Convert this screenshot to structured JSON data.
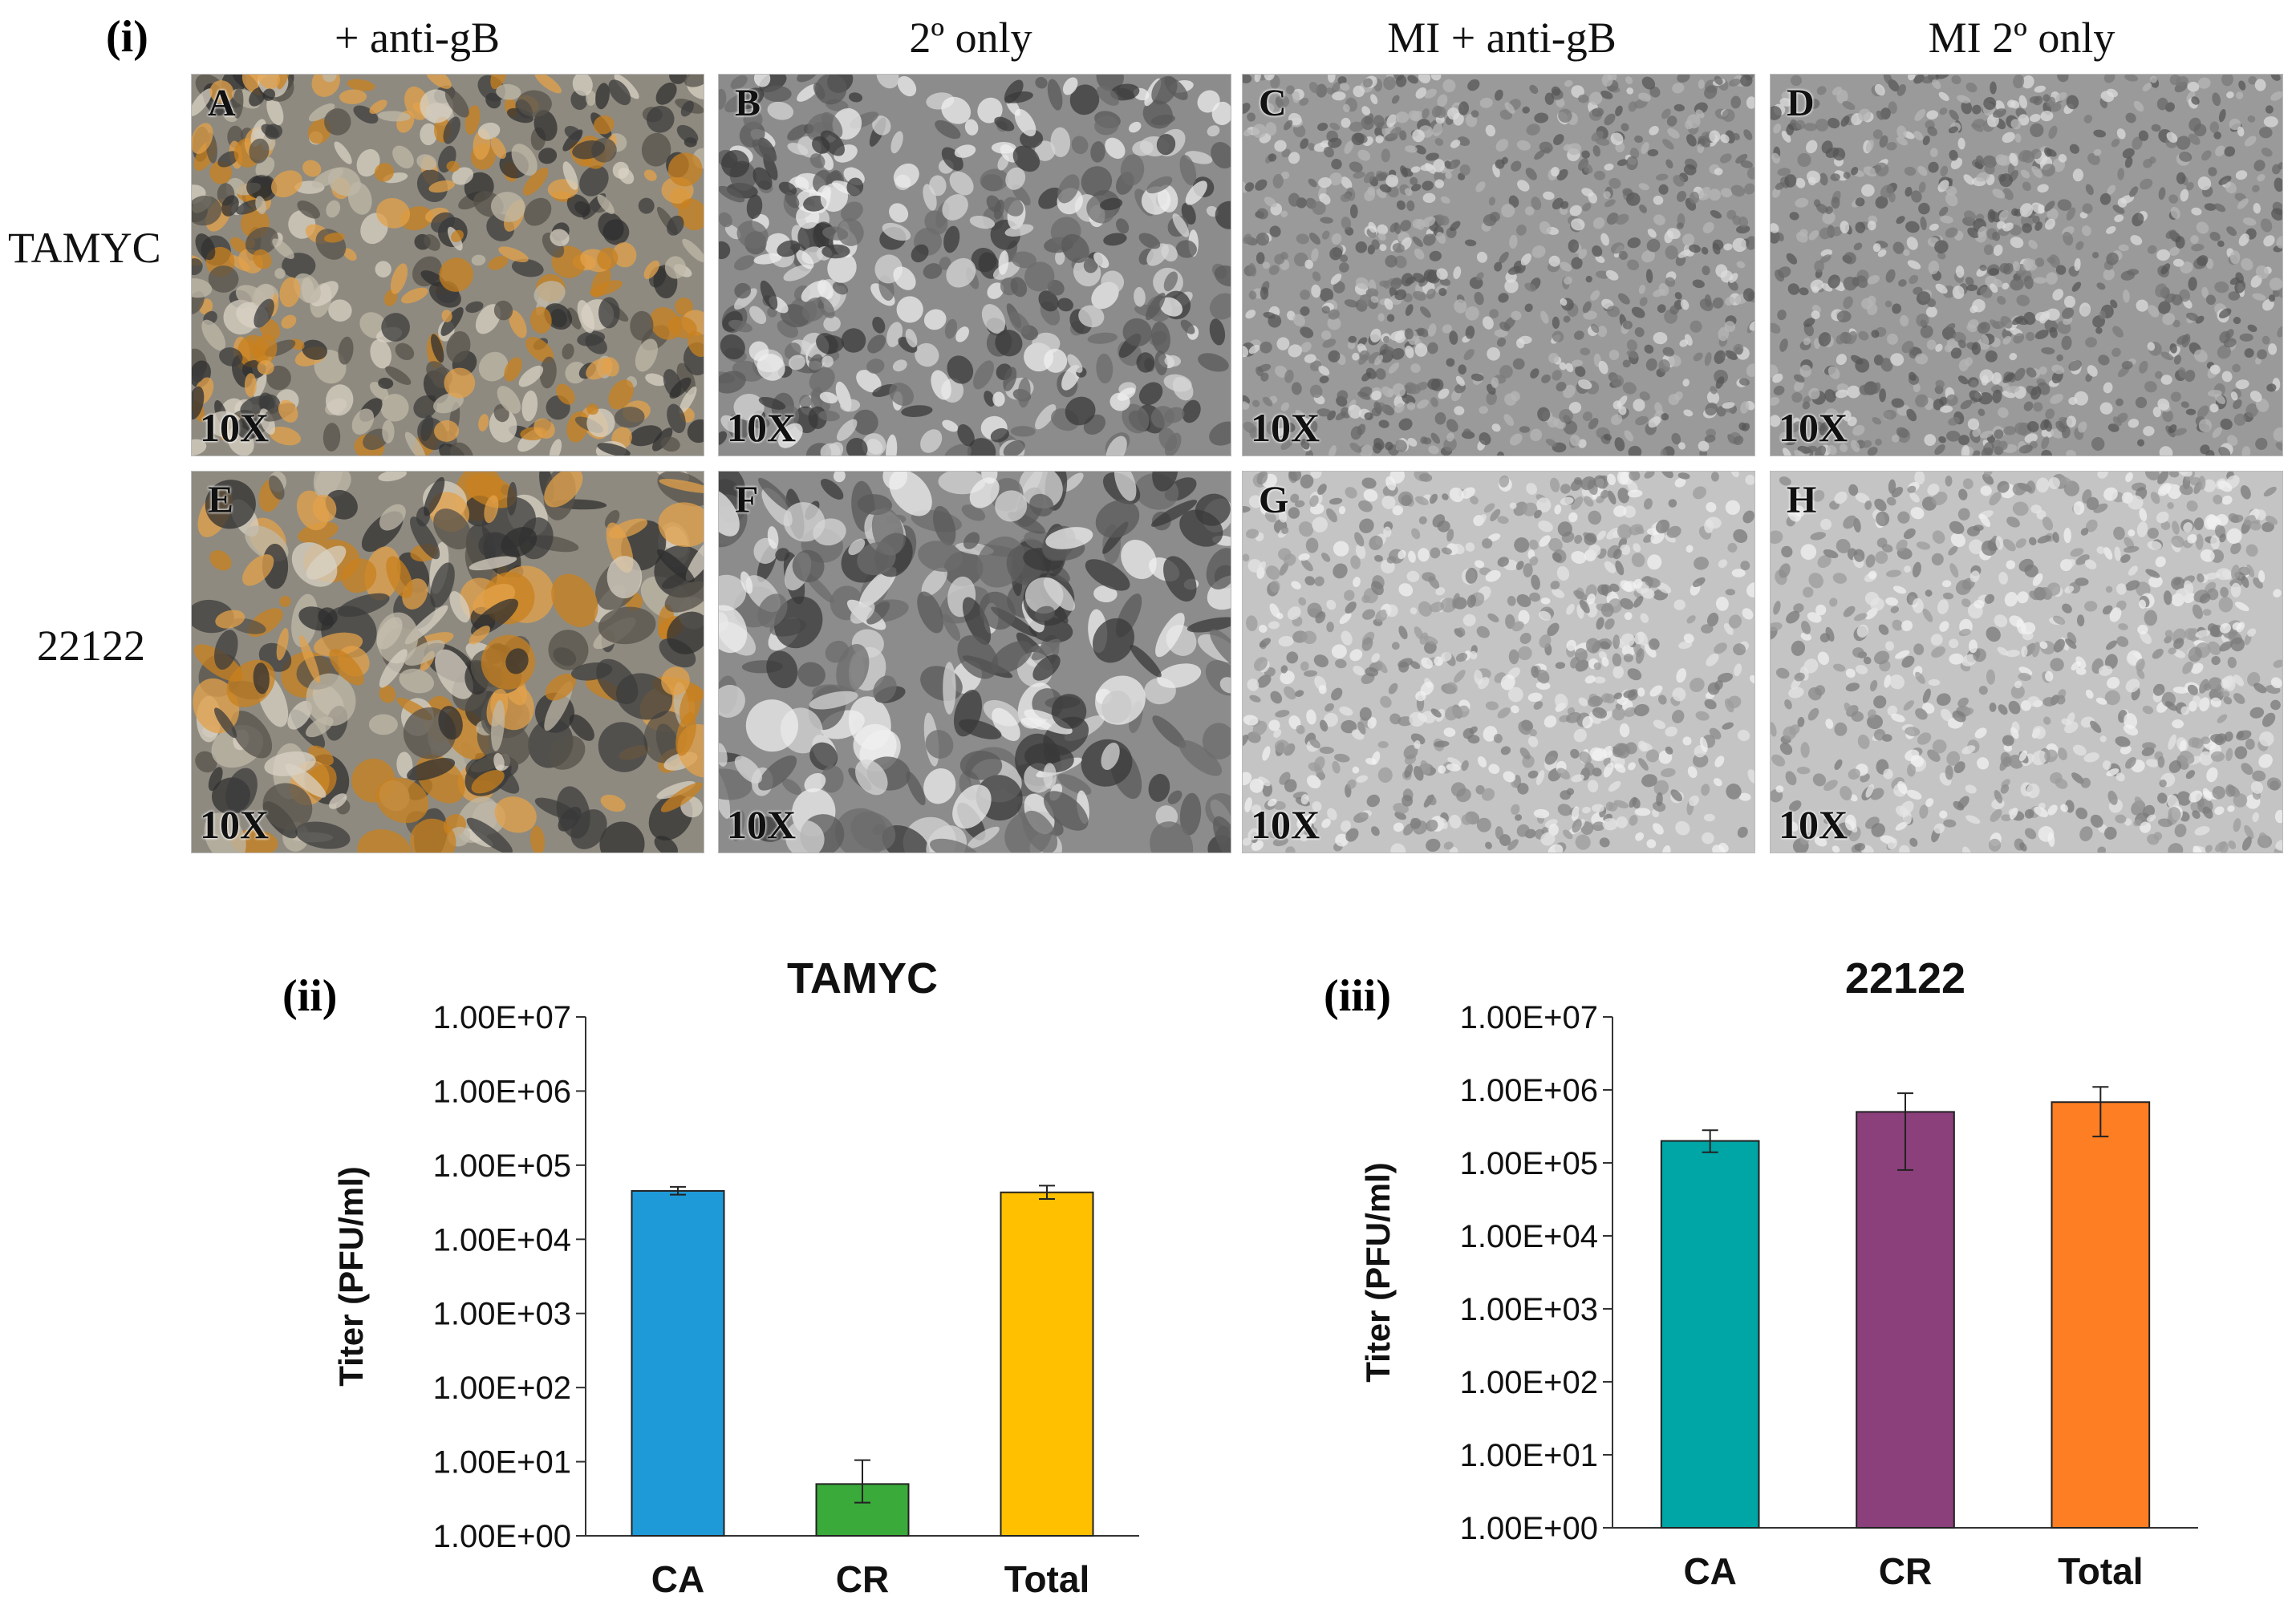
{
  "figure": {
    "panel_i_label": "(i)",
    "column_headers": [
      "+ anti-gB",
      "2º only",
      "MI + anti-gB",
      "MI 2º only"
    ],
    "row_labels": [
      "TAMYC",
      "22122"
    ],
    "micrographs": [
      {
        "letter": "A",
        "magnification": "10X",
        "texture": "stained-dense"
      },
      {
        "letter": "B",
        "magnification": "10X",
        "texture": "phase-dense"
      },
      {
        "letter": "C",
        "magnification": "10X",
        "texture": "gray-confluent"
      },
      {
        "letter": "D",
        "magnification": "10X",
        "texture": "gray-confluent"
      },
      {
        "letter": "E",
        "magnification": "10X",
        "texture": "stained-sparse"
      },
      {
        "letter": "F",
        "magnification": "10X",
        "texture": "phase-sparse"
      },
      {
        "letter": "G",
        "magnification": "10X",
        "texture": "light-confluent"
      },
      {
        "letter": "H",
        "magnification": "10X",
        "texture": "light-confluent"
      }
    ],
    "colors": {
      "micro_stain": "#c8801e",
      "micro_gray": "#9a9a9a",
      "micro_light": "#c4c4c4"
    }
  },
  "chart_data": [
    {
      "type": "bar",
      "panel_label": "(ii)",
      "title": "TAMYC",
      "ylabel": "Titer (PFU/ml)",
      "yscale": "log",
      "ylim": [
        1,
        10000000
      ],
      "yticks": [
        "1.00E+00",
        "1.00E+01",
        "1.00E+02",
        "1.00E+03",
        "1.00E+04",
        "1.00E+05",
        "1.00E+06",
        "1.00E+07"
      ],
      "categories": [
        "CA",
        "CR",
        "Total"
      ],
      "values": [
        45000,
        5,
        43000
      ],
      "error_low": [
        40000,
        2.8,
        35000
      ],
      "error_high": [
        51000,
        10.5,
        53000
      ],
      "colors": [
        "#1f9ad8",
        "#3aaa3a",
        "#ffc000"
      ],
      "grid": false
    },
    {
      "type": "bar",
      "panel_label": "(iii)",
      "title": "22122",
      "ylabel": "Titer (PFU/ml)",
      "yscale": "log",
      "ylim": [
        1,
        10000000
      ],
      "yticks": [
        "1.00E+00",
        "1.00E+01",
        "1.00E+02",
        "1.00E+03",
        "1.00E+04",
        "1.00E+05",
        "1.00E+06",
        "1.00E+07"
      ],
      "categories": [
        "CA",
        "CR",
        "Total"
      ],
      "values": [
        200000,
        500000,
        680000
      ],
      "error_low": [
        140000,
        80000,
        230000
      ],
      "error_high": [
        280000,
        900000,
        1100000
      ],
      "colors": [
        "#00a5a5",
        "#8b3f7b",
        "#fd7e23"
      ],
      "grid": false
    }
  ]
}
